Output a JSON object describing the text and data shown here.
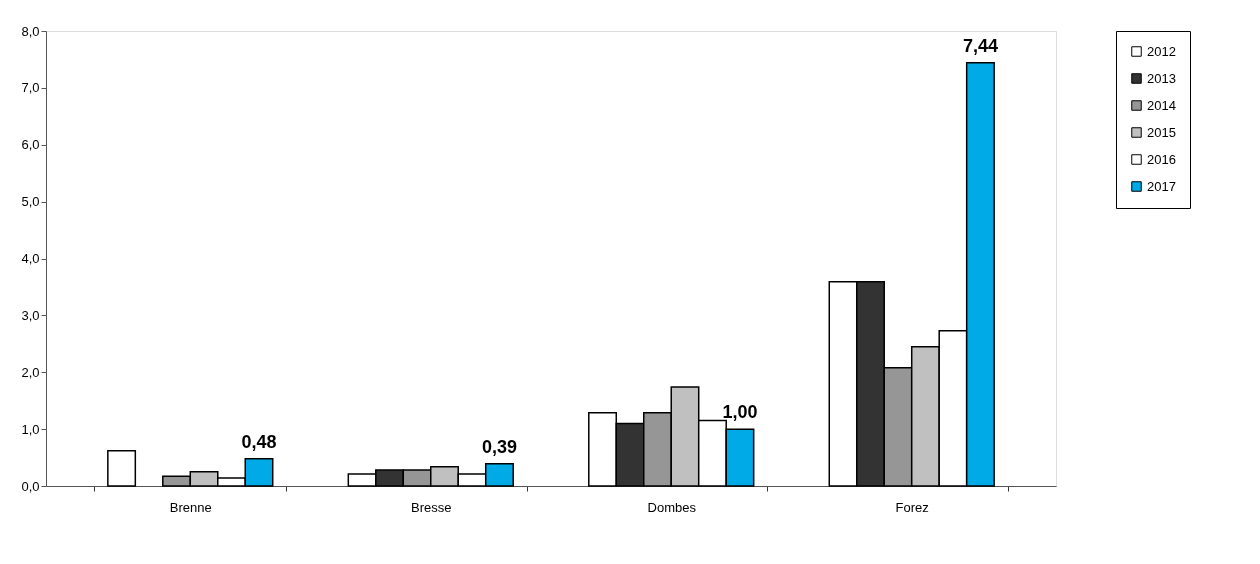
{
  "chart_data": {
    "type": "bar",
    "categories": [
      "Brenne",
      "Bresse",
      "Dombes",
      "Forez"
    ],
    "series": [
      {
        "name": "2012",
        "color": "#ffffff",
        "values": [
          0.62,
          0.21,
          1.29,
          3.59
        ]
      },
      {
        "name": "2013",
        "color": "#333333",
        "values": [
          null,
          0.28,
          1.1,
          3.59
        ]
      },
      {
        "name": "2014",
        "color": "#969696",
        "values": [
          0.17,
          0.28,
          1.29,
          2.08
        ]
      },
      {
        "name": "2015",
        "color": "#c0c0c0",
        "values": [
          0.25,
          0.34,
          1.74,
          2.45
        ]
      },
      {
        "name": "2016",
        "color": "#ffffff",
        "values": [
          0.14,
          0.21,
          1.15,
          2.73
        ]
      },
      {
        "name": "2017",
        "color": "#00aae6",
        "values": [
          0.48,
          0.39,
          1.0,
          7.44
        ],
        "value_labels": [
          "0,48",
          "0,39",
          "1,00",
          "7,44"
        ]
      }
    ],
    "ylim": [
      0,
      8
    ],
    "yticks": [
      {
        "value": 0,
        "label": "0,0"
      },
      {
        "value": 1,
        "label": "1,0"
      },
      {
        "value": 2,
        "label": "2,0"
      },
      {
        "value": 3,
        "label": "3,0"
      },
      {
        "value": 4,
        "label": "4,0"
      },
      {
        "value": 5,
        "label": "5,0"
      },
      {
        "value": 6,
        "label": "6,0"
      },
      {
        "value": 7,
        "label": "7,0"
      },
      {
        "value": 8,
        "label": "8,0"
      }
    ],
    "grid": false,
    "legend": "right"
  }
}
